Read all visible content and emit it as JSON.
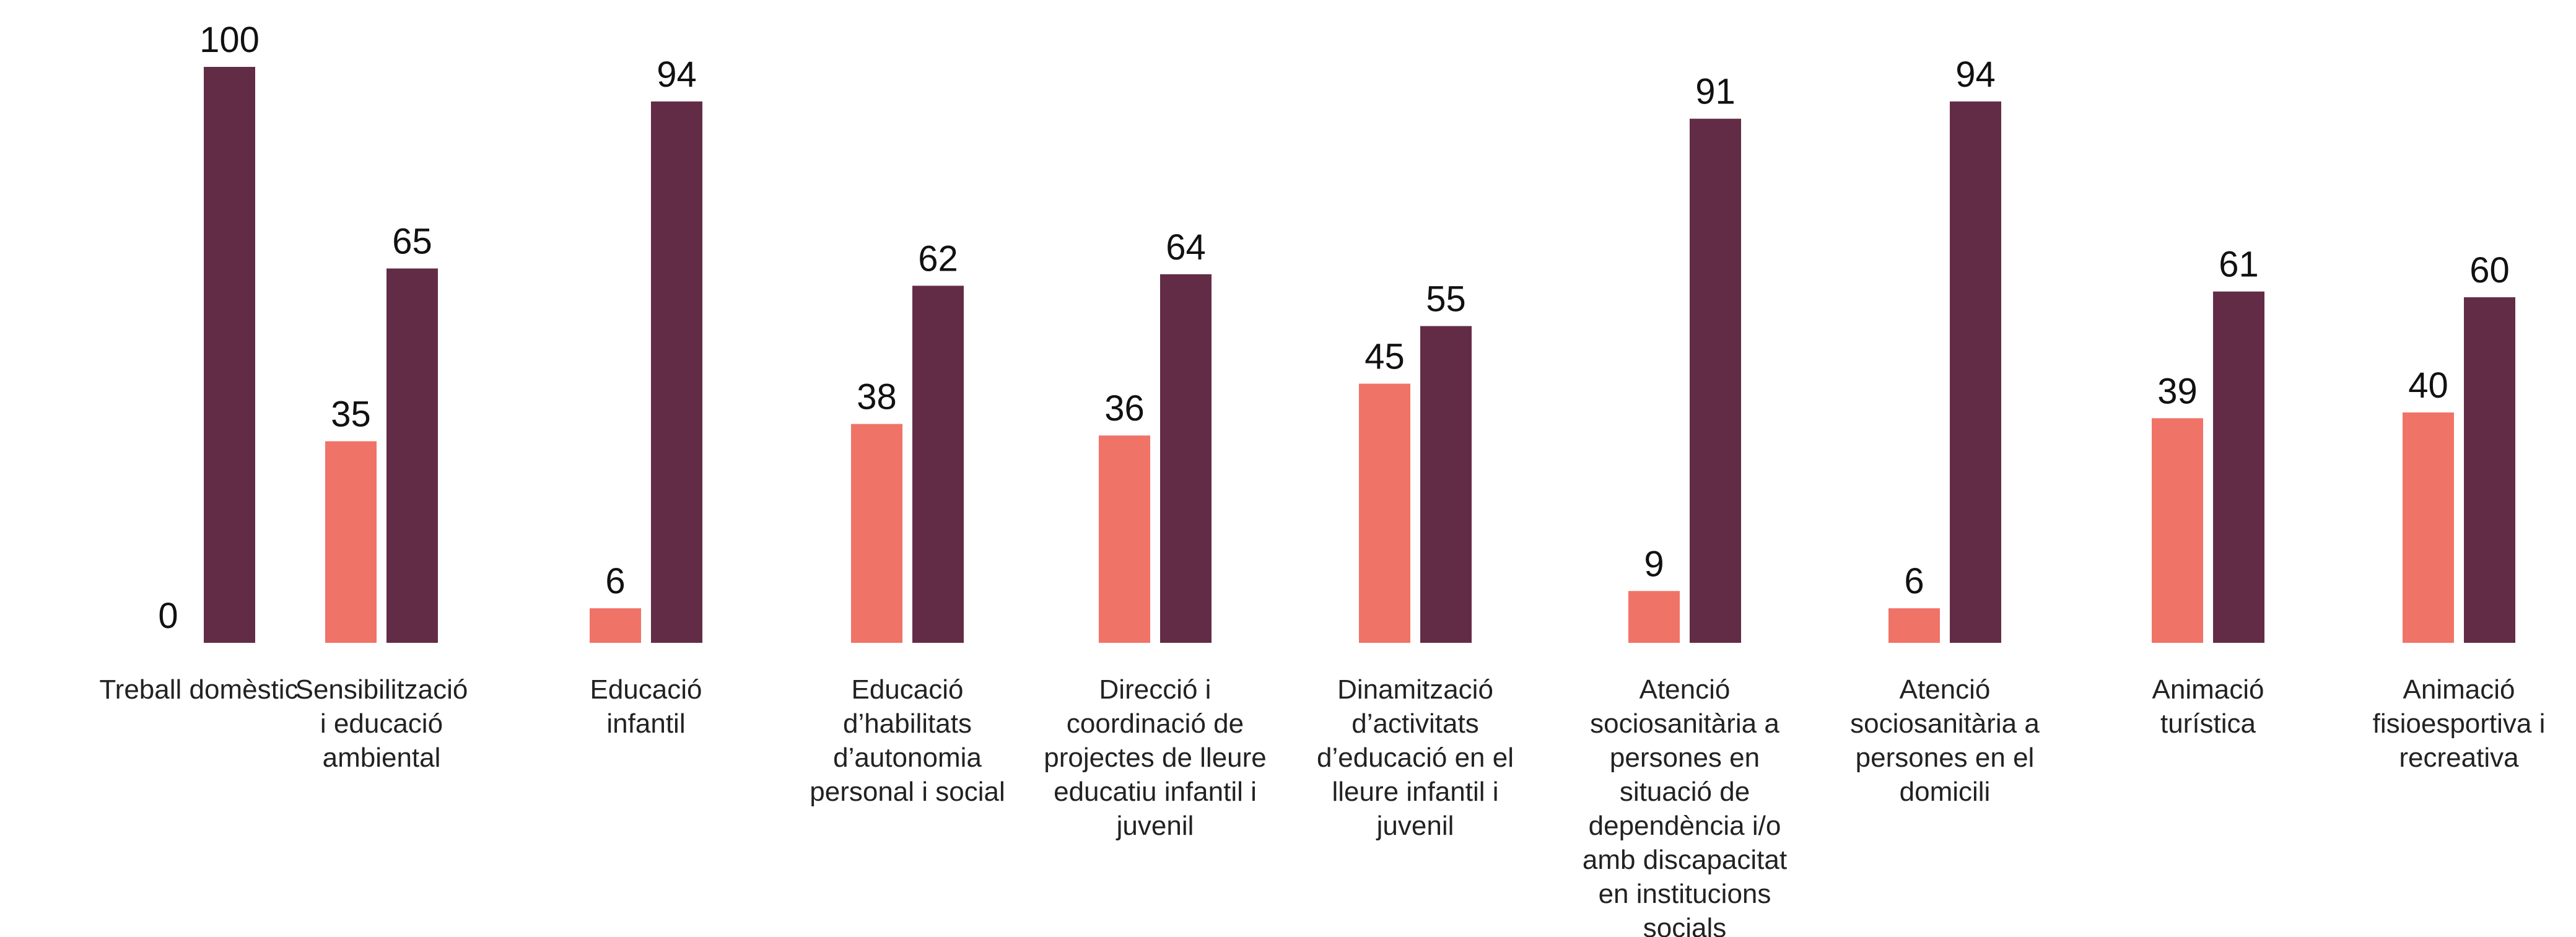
{
  "chart_data": {
    "type": "bar",
    "title": "",
    "xlabel": "",
    "ylabel": "",
    "ylim": [
      0,
      100
    ],
    "grid": false,
    "legend": "none",
    "categories": [
      [
        "Treball domèstic"
      ],
      [
        "Sensibilització",
        "i educació",
        "ambiental"
      ],
      [
        "Educació",
        "infantil"
      ],
      [
        "Educació",
        "d’habilitats",
        "d’autonomia",
        "personal i social"
      ],
      [
        "Direcció i",
        "coordinació de",
        "projectes de lleure",
        "educatiu infantil i",
        "juvenil"
      ],
      [
        "Dinamització",
        "d’activitats",
        "d’educació en el",
        "lleure infantil i",
        "juvenil"
      ],
      [
        "Atenció",
        "sociosanitària a",
        "persones en",
        "situació de",
        "dependència i/o",
        "amb discapacitat",
        "en institucions",
        "socials"
      ],
      [
        "Atenció",
        "sociosanitària a",
        "persones en el",
        "domicili"
      ],
      [
        "Animació",
        "turística"
      ],
      [
        "Animació",
        "fisioesportiva i",
        "recreativa"
      ]
    ],
    "series": [
      {
        "values": [
          0,
          35,
          6,
          38,
          36,
          45,
          9,
          6,
          39,
          40
        ],
        "color": "#f07367"
      },
      {
        "values": [
          100,
          65,
          94,
          62,
          64,
          55,
          91,
          94,
          61,
          60
        ],
        "color": "#632c46"
      }
    ]
  }
}
